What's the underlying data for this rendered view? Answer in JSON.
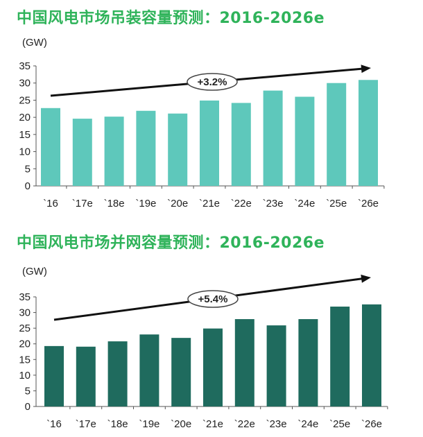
{
  "charts": [
    {
      "title": "中国风电市场吊装容量预测：2016-2026e",
      "unit": "(GW)",
      "cagr_label": "+3.2%"
    },
    {
      "title": "中国风电市场并网容量预测：2016-2026e",
      "unit": "(GW)",
      "cagr_label": "+5.4%"
    }
  ],
  "chart_data": [
    {
      "type": "bar",
      "title": "中国风电市场吊装容量预测：2016-2026e",
      "ylabel": "(GW)",
      "categories": [
        "`16",
        "`17e",
        "`18e",
        "`19e",
        "`20e",
        "`21e",
        "`22e",
        "`23e",
        "`24e",
        "`25e",
        "`26e"
      ],
      "values": [
        22.7,
        19.6,
        20.2,
        21.9,
        21.1,
        24.9,
        24.2,
        27.8,
        26.0,
        30.0,
        30.9
      ],
      "ylim": [
        0,
        35
      ],
      "yticks": [
        0,
        5,
        10,
        15,
        20,
        25,
        30,
        35
      ],
      "annotation": "+3.2%",
      "bar_color": "#5ec8bb",
      "grid": false,
      "legend": "none"
    },
    {
      "type": "bar",
      "title": "中国风电市场并网容量预测：2016-2026e",
      "ylabel": "(GW)",
      "categories": [
        "`16",
        "`17e",
        "`18e",
        "`19e",
        "`20e",
        "`21e",
        "`22e",
        "`23e",
        "`24e",
        "`25e",
        "`26e"
      ],
      "values": [
        19.3,
        19.1,
        20.8,
        23.0,
        21.9,
        24.9,
        27.9,
        25.9,
        27.9,
        31.9,
        32.6
      ],
      "ylim": [
        0,
        35
      ],
      "yticks": [
        0,
        5,
        10,
        15,
        20,
        25,
        30,
        35
      ],
      "annotation": "+5.4%",
      "bar_color": "#1f6b5e",
      "grid": false,
      "legend": "none"
    }
  ]
}
